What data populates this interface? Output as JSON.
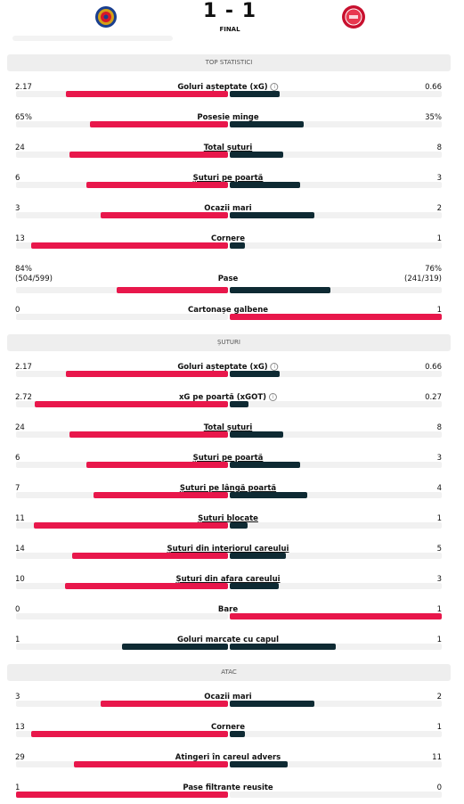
{
  "header": {
    "score": "1 - 1",
    "status": "FINAL"
  },
  "colors": {
    "win": "#e8174b",
    "other": "#0e2a33"
  },
  "sections": [
    {
      "title": "TOP STATISTICI",
      "rows": [
        {
          "name": "Goluri așteptate (xG)",
          "home": 2.17,
          "away": 0.66,
          "info": true
        },
        {
          "name": "Posesie minge",
          "home": {
            "value": 65,
            "label": "65%"
          },
          "away": {
            "value": 35,
            "label": "35%"
          }
        },
        {
          "name": "Total șuturi",
          "home": 24,
          "away": 8,
          "link": true
        },
        {
          "name": "Șuturi pe poartă",
          "home": 6,
          "away": 3,
          "link": true
        },
        {
          "name": "Ocazii mari",
          "home": 3,
          "away": 2
        },
        {
          "name": "Cornere",
          "home": 13,
          "away": 1
        },
        {
          "name": "Pase",
          "home": {
            "value": 84,
            "label": "84%"
          },
          "away": {
            "value": 76,
            "label": "76%"
          },
          "home_detail": "(504/599)",
          "away_detail": "(241/319)"
        },
        {
          "name": "Cartonașe galbene",
          "home": 0,
          "away": 1
        }
      ]
    },
    {
      "title": "ȘUTURI",
      "rows": [
        {
          "name": "Goluri așteptate (xG)",
          "home": 2.17,
          "away": 0.66,
          "info": true
        },
        {
          "name": "xG pe poartă (xGOT)",
          "home": 2.72,
          "away": 0.27,
          "info": true
        },
        {
          "name": "Total șuturi",
          "home": 24,
          "away": 8,
          "link": true
        },
        {
          "name": "Șuturi pe poartă",
          "home": 6,
          "away": 3,
          "link": true
        },
        {
          "name": "Șuturi pe lângă poartă",
          "home": 7,
          "away": 4,
          "link": true
        },
        {
          "name": "Șuturi blocate",
          "home": 11,
          "away": 1,
          "link": true
        },
        {
          "name": "Șuturi din interiorul careului",
          "home": 14,
          "away": 5,
          "link": true
        },
        {
          "name": "Șuturi din afara careului",
          "home": 10,
          "away": 3,
          "link": true
        },
        {
          "name": "Bare",
          "home": 0,
          "away": 1
        },
        {
          "name": "Goluri marcate cu capul",
          "home": 1,
          "away": 1
        }
      ]
    },
    {
      "title": "ATAC",
      "rows": [
        {
          "name": "Ocazii mari",
          "home": 3,
          "away": 2
        },
        {
          "name": "Cornere",
          "home": 13,
          "away": 1
        },
        {
          "name": "Atingeri în careul advers",
          "home": 29,
          "away": 11
        },
        {
          "name": "Pase filtrante reusite",
          "home": 1,
          "away": 0
        }
      ]
    }
  ]
}
